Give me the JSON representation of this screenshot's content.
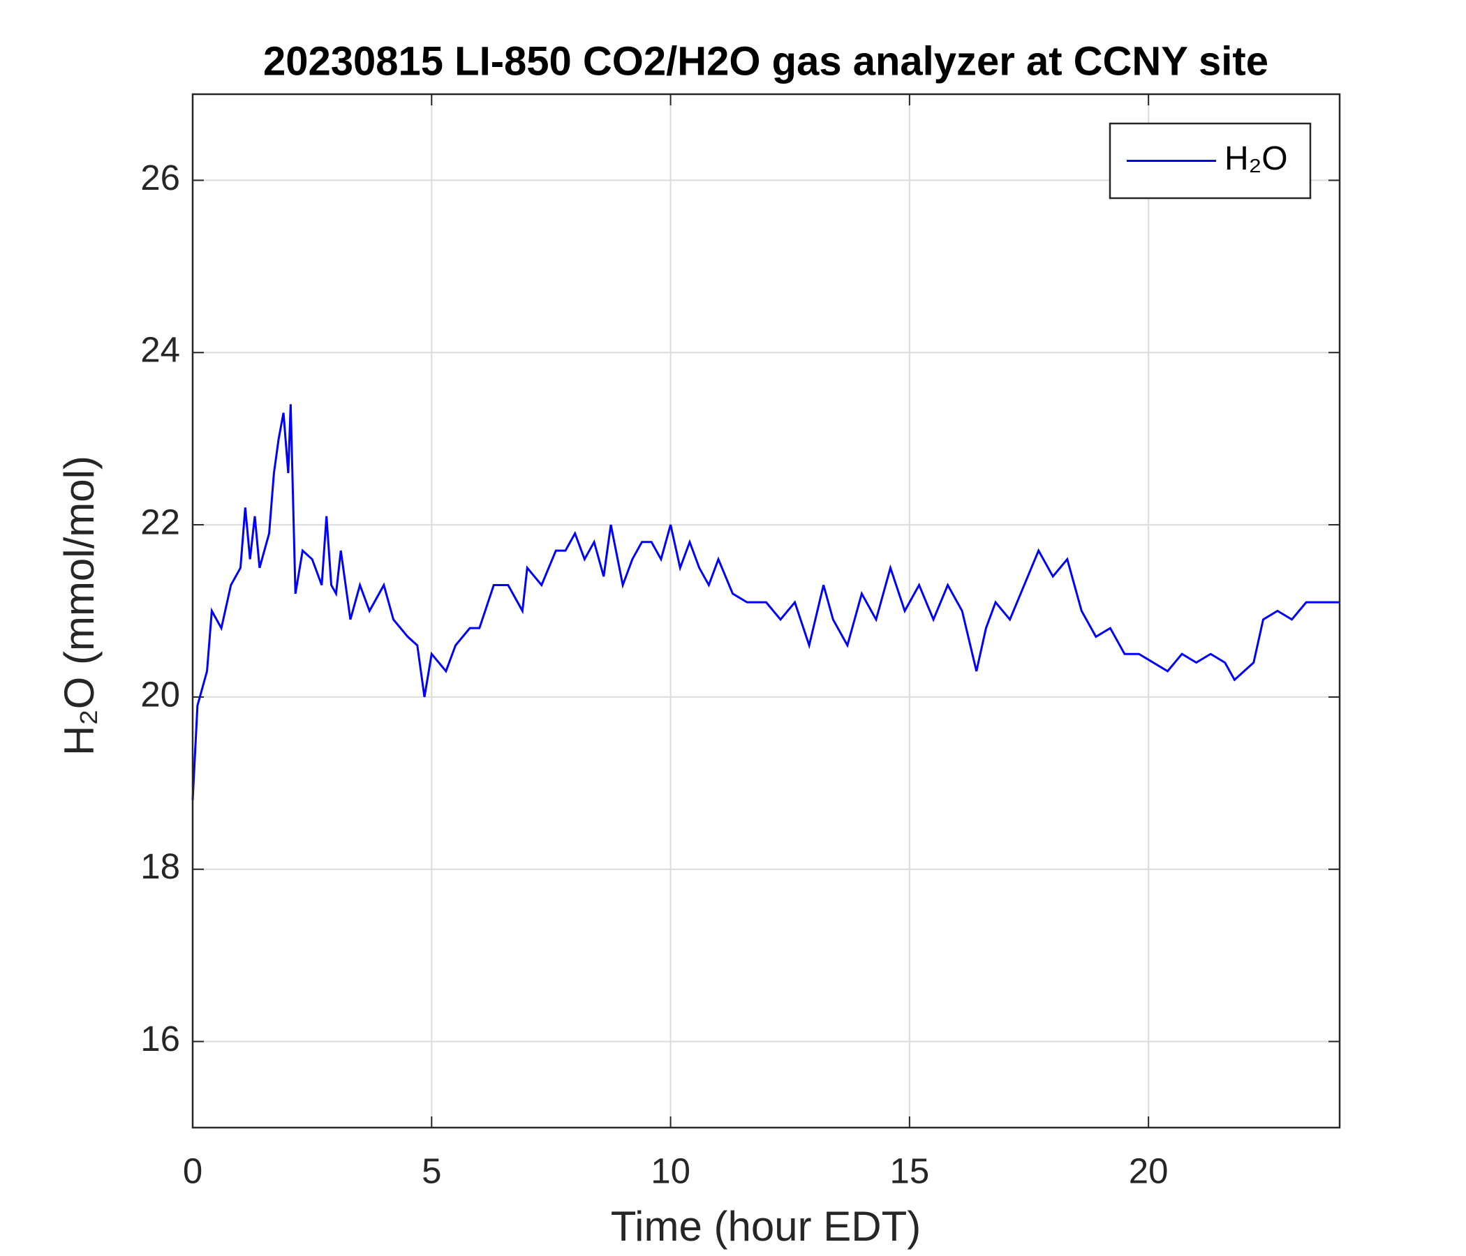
{
  "chart_data": {
    "type": "line",
    "title": "20230815 LI-850 CO2/H2O gas analyzer at CCNY site",
    "xlabel": "Time (hour EDT)",
    "ylabel": "H₂O (mmol/mol)",
    "x": [
      0,
      0.1,
      0.3,
      0.4,
      0.6,
      0.8,
      1.0,
      1.1,
      1.2,
      1.3,
      1.4,
      1.6,
      1.7,
      1.8,
      1.9,
      2.0,
      2.05,
      2.15,
      2.3,
      2.5,
      2.7,
      2.8,
      2.9,
      3.0,
      3.1,
      3.3,
      3.5,
      3.7,
      4.0,
      4.2,
      4.5,
      4.7,
      4.85,
      5.0,
      5.3,
      5.5,
      5.8,
      6.0,
      6.3,
      6.6,
      6.9,
      7.0,
      7.3,
      7.6,
      7.8,
      8.0,
      8.2,
      8.4,
      8.6,
      8.75,
      9.0,
      9.2,
      9.4,
      9.6,
      9.8,
      10.0,
      10.2,
      10.4,
      10.6,
      10.8,
      11.0,
      11.3,
      11.6,
      12.0,
      12.3,
      12.6,
      12.9,
      13.2,
      13.4,
      13.7,
      14.0,
      14.3,
      14.6,
      14.9,
      15.2,
      15.5,
      15.8,
      16.1,
      16.4,
      16.6,
      16.8,
      17.1,
      17.4,
      17.7,
      18.0,
      18.3,
      18.6,
      18.9,
      19.2,
      19.5,
      19.8,
      20.1,
      20.4,
      20.7,
      21.0,
      21.3,
      21.6,
      21.8,
      22.0,
      22.2,
      22.4,
      22.7,
      23.0,
      23.3,
      23.6,
      24.0
    ],
    "series": [
      {
        "name": "H₂O",
        "color": "#0000ff",
        "values": [
          18.8,
          19.9,
          20.3,
          21.0,
          20.8,
          21.3,
          21.5,
          22.2,
          21.6,
          22.1,
          21.5,
          21.9,
          22.6,
          23.0,
          23.3,
          22.6,
          23.4,
          21.2,
          21.7,
          21.6,
          21.3,
          22.1,
          21.3,
          21.2,
          21.7,
          20.9,
          21.3,
          21.0,
          21.3,
          20.9,
          20.7,
          20.6,
          20.0,
          20.5,
          20.3,
          20.6,
          20.8,
          20.8,
          21.3,
          21.3,
          21.0,
          21.5,
          21.3,
          21.7,
          21.7,
          21.9,
          21.6,
          21.8,
          21.4,
          22.0,
          21.3,
          21.6,
          21.8,
          21.8,
          21.6,
          22.0,
          21.5,
          21.8,
          21.5,
          21.3,
          21.6,
          21.2,
          21.1,
          21.1,
          20.9,
          21.1,
          20.6,
          21.3,
          20.9,
          20.6,
          21.2,
          20.9,
          21.5,
          21.0,
          21.3,
          20.9,
          21.3,
          21.0,
          20.3,
          20.8,
          21.1,
          20.9,
          21.3,
          21.7,
          21.4,
          21.6,
          21.0,
          20.7,
          20.8,
          20.5,
          20.5,
          20.4,
          20.3,
          20.5,
          20.4,
          20.5,
          20.4,
          20.2,
          20.3,
          20.4,
          20.9,
          21.0,
          20.9,
          21.1,
          21.1,
          21.1
        ]
      }
    ],
    "xlim": [
      0,
      24
    ],
    "xticks": [
      0,
      5,
      10,
      15,
      20
    ],
    "ylim": [
      15,
      27
    ],
    "yticks": [
      16,
      18,
      20,
      22,
      24,
      26
    ],
    "grid": true,
    "legend": "upper right"
  }
}
